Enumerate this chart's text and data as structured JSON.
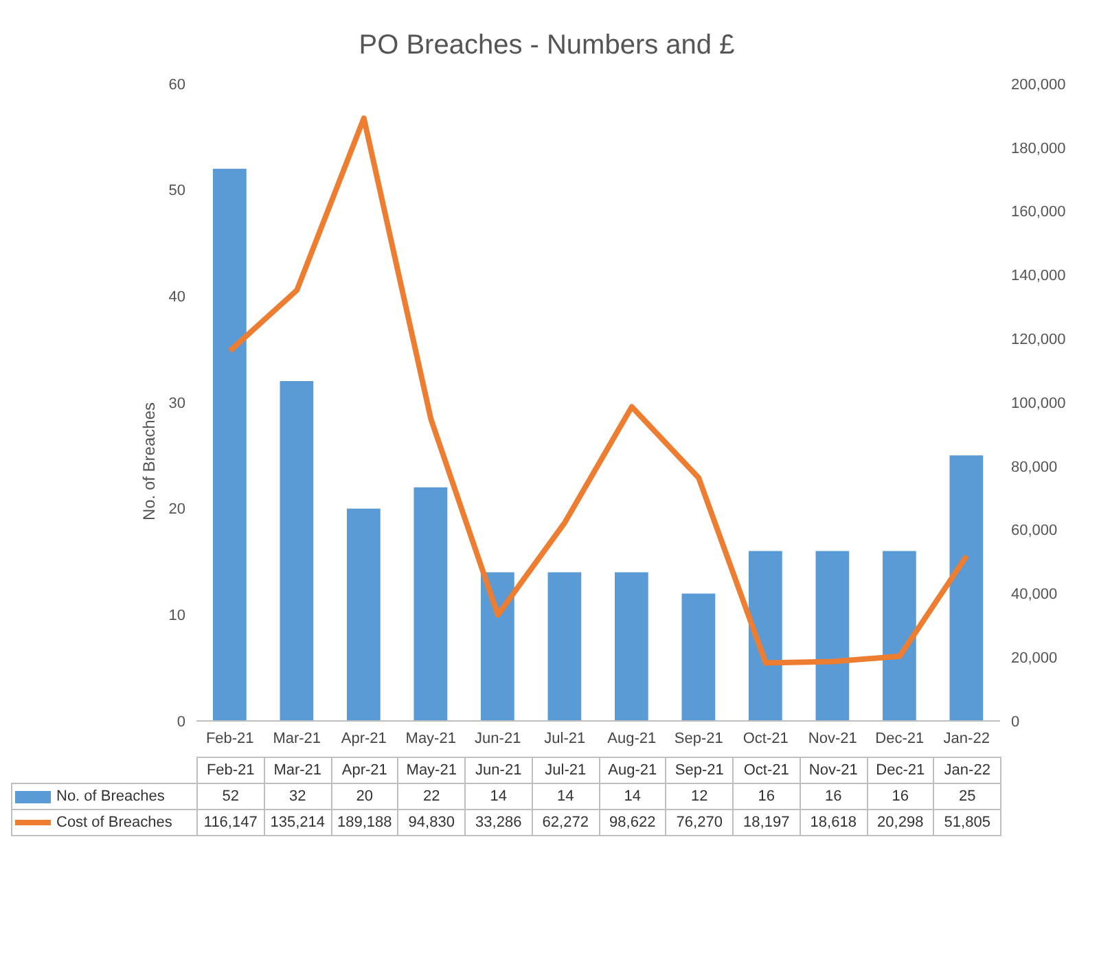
{
  "chart_data": {
    "type": "bar",
    "title": "PO Breaches - Numbers and £",
    "categories": [
      "Feb-21",
      "Mar-21",
      "Apr-21",
      "May-21",
      "Jun-21",
      "Jul-21",
      "Aug-21",
      "Sep-21",
      "Oct-21",
      "Nov-21",
      "Dec-21",
      "Jan-22"
    ],
    "series": [
      {
        "name": "No. of Breaches",
        "color": "#5b9bd5",
        "values": [
          52,
          32,
          20,
          22,
          14,
          14,
          14,
          12,
          16,
          16,
          16,
          25
        ],
        "value_labels": [
          "52",
          "32",
          "20",
          "22",
          "14",
          "14",
          "14",
          "12",
          "16",
          "16",
          "16",
          "25"
        ]
      },
      {
        "name": "Cost of Breaches",
        "type": "line",
        "axis": "y2",
        "color": "#ed7d31",
        "values": [
          116147,
          135214,
          189188,
          94830,
          33286,
          62272,
          98622,
          76270,
          18197,
          18618,
          20298,
          51805
        ],
        "value_labels": [
          "116,147",
          "135,214",
          "189,188",
          "94,830",
          "33,286",
          "62,272",
          "98,622",
          "76,270",
          "18,197",
          "18,618",
          "20,298",
          "51,805"
        ]
      }
    ],
    "ylabel": "No. of Breaches",
    "ylim": [
      0,
      60
    ],
    "yticks": [
      0,
      10,
      20,
      30,
      40,
      50,
      60
    ],
    "y2lim": [
      0,
      200000
    ],
    "y2ticks": [
      0,
      {
        "value": 20000,
        "label": "20,000"
      },
      {
        "value": 40000,
        "label": "40,000"
      },
      {
        "value": 60000,
        "label": "60,000"
      },
      {
        "value": 80000,
        "label": "80,000"
      },
      {
        "value": 100000,
        "label": "100,000"
      },
      {
        "value": 120000,
        "label": "120,000"
      },
      {
        "value": 140000,
        "label": "140,000"
      },
      {
        "value": 160000,
        "label": "160,000"
      },
      {
        "value": 180000,
        "label": "180,000"
      },
      {
        "value": 200000,
        "label": "200,000"
      }
    ],
    "legend": "bottom",
    "grid": false
  }
}
